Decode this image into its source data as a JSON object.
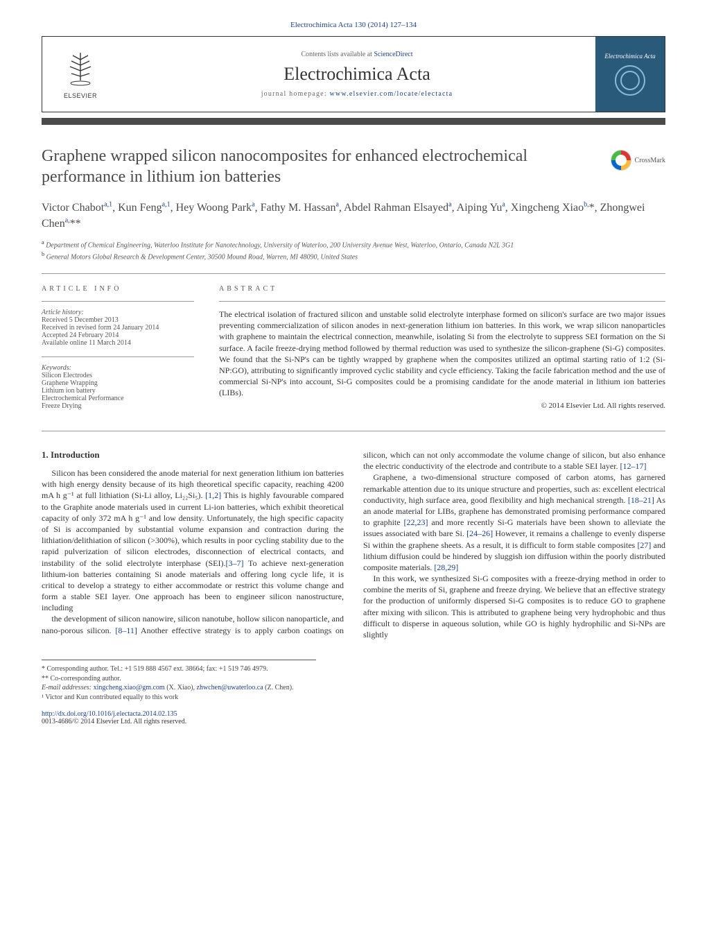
{
  "journal_ref": {
    "text": "Electrochimica Acta 130 (2014) 127–134",
    "journal_link_text": "Electrochimica Acta"
  },
  "header": {
    "contents_prefix": "Contents lists available at ",
    "contents_link": "ScienceDirect",
    "journal_title": "Electrochimica Acta",
    "homepage_prefix": "journal homepage: ",
    "homepage_link": "www.elsevier.com/locate/electacta",
    "publisher": "ELSEVIER",
    "cover_title": "Electrochimica Acta"
  },
  "crossmark_label": "CrossMark",
  "title": "Graphene wrapped silicon nanocomposites for enhanced electrochemical performance in lithium ion batteries",
  "authors_html": "Victor Chabot<sup>a,1</sup>, Kun Feng<sup>a,1</sup>, Hey Woong Park<sup>a</sup>, Fathy M. Hassan<sup>a</sup>, Abdel Rahman Elsayed<sup>a</sup>, Aiping Yu<sup>a</sup>, Xingcheng Xiao<sup>b,</sup>*, Zhongwei Chen<sup>a,</sup>**",
  "affiliations": [
    {
      "sup": "a",
      "text": "Department of Chemical Engineering, Waterloo Institute for Nanotechnology, University of Waterloo, 200 University Avenue West, Waterloo, Ontario, Canada N2L 3G1"
    },
    {
      "sup": "b",
      "text": "General Motors Global Research & Development Center, 30500 Mound Road, Warren, MI 48090, United States"
    }
  ],
  "article_info": {
    "heading": "article info",
    "history_label": "Article history:",
    "history": [
      "Received 5 December 2013",
      "Received in revised form 24 January 2014",
      "Accepted 24 February 2014",
      "Available online 11 March 2014"
    ],
    "keywords_label": "Keywords:",
    "keywords": [
      "Silicon Electrodes",
      "Graphene Wrapping",
      "Lithium ion battery",
      "Electrochemical Performance",
      "Freeze Drying"
    ]
  },
  "abstract": {
    "heading": "abstract",
    "text": "The electrical isolation of fractured silicon and unstable solid electrolyte interphase formed on silicon's surface are two major issues preventing commercialization of silicon anodes in next-generation lithium ion batteries. In this work, we wrap silicon nanoparticles with graphene to maintain the electrical connection, meanwhile, isolating Si from the electrolyte to suppress SEI formation on the Si surface. A facile freeze-drying method followed by thermal reduction was used to synthesize the silicon-graphene (Si-G) composites. We found that the Si-NP's can be tightly wrapped by graphene when the composites utilized an optimal starting ratio of 1:2 (Si-NP:GO), attributing to significantly improved cyclic stability and cycle efficiency. Taking the facile fabrication method and the use of commercial Si-NP's into account, Si-G composites could be a promising candidate for the anode material in lithium ion batteries (LIBs).",
    "copyright": "© 2014 Elsevier Ltd. All rights reserved."
  },
  "section1": {
    "heading": "1. Introduction",
    "paragraphs": [
      "Silicon has been considered the anode material for next generation lithium ion batteries with high energy density because of its high theoretical specific capacity, reaching 4200 mA h g⁻¹ at full lithiation (Si-Li alloy, Li₂₂Si₅). [1,2] This is highly favourable compared to the Graphite anode materials used in current Li-ion batteries, which exhibit theoretical capacity of only 372 mA h g⁻¹ and low density. Unfortunately, the high specific capacity of Si is accompanied by substantial volume expansion and contraction during the lithiation/delithiation of silicon (>300%), which results in poor cycling stability due to the rapid pulverization of silicon electrodes, disconnection of electrical contacts, and instability of the solid electrolyte interphase (SEI).[3–7] To achieve next-generation lithium-ion batteries containing Si anode materials and offering long cycle life, it is critical to develop a strategy to either accommodate or restrict this volume change and form a stable SEI layer. One approach has been to engineer silicon nanostructure, including",
      "the development of silicon nanowire, silicon nanotube, hollow silicon nanoparticle, and nano-porous silicon. [8–11] Another effective strategy is to apply carbon coatings on silicon, which can not only accommodate the volume change of silicon, but also enhance the electric conductivity of the electrode and contribute to a stable SEI layer. [12–17]",
      "Graphene, a two-dimensional structure composed of carbon atoms, has garnered remarkable attention due to its unique structure and properties, such as: excellent electrical conductivity, high surface area, good flexibility and high mechanical strength. [18–21] As an anode material for LIBs, graphene has demonstrated promising performance compared to graphite [22,23] and more recently Si-G materials have been shown to alleviate the issues associated with bare Si. [24–26] However, it remains a challenge to evenly disperse Si within the graphene sheets. As a result, it is difficult to form stable composites [27] and lithium diffusion could be hindered by sluggish ion diffusion within the poorly distributed composite materials. [28,29]",
      "In this work, we synthesized Si-G composites with a freeze-drying method in order to combine the merits of Si, graphene and freeze drying. We believe that an effective strategy for the production of uniformly dispersed Si-G composites is to reduce GO to graphene after mixing with silicon. This is attributed to graphene being very hydrophobic and thus difficult to disperse in aqueous solution, while GO is highly hydrophilic and Si-NPs are slightly"
    ],
    "ref_links": [
      "[1,2]",
      "[3–7]",
      "[8–11]",
      "[12–17]",
      "[18–21]",
      "[22,23]",
      "[24–26]",
      "[27]",
      "[28,29]"
    ]
  },
  "footnotes": {
    "corr1": "* Corresponding author. Tel.: +1 519 888 4567 ext. 38664; fax: +1 519 746 4979.",
    "corr2": "** Co-corresponding author.",
    "email_label": "E-mail addresses: ",
    "emails": [
      {
        "addr": "xingcheng.xiao@gm.com",
        "who": "(X. Xiao)"
      },
      {
        "addr": "zhwchen@uwaterloo.ca",
        "who": "(Z. Chen)."
      }
    ],
    "note1": "¹ Victor and Kun contributed equally to this work"
  },
  "doi": {
    "link": "http://dx.doi.org/10.1016/j.electacta.2014.02.135",
    "issn_line": "0013-4686/© 2014 Elsevier Ltd. All rights reserved."
  },
  "colors": {
    "link": "#1a3f8b",
    "bar": "#4a4a4a",
    "text": "#333333",
    "muted": "#555555",
    "cover_bg": "#2a5a7a"
  }
}
